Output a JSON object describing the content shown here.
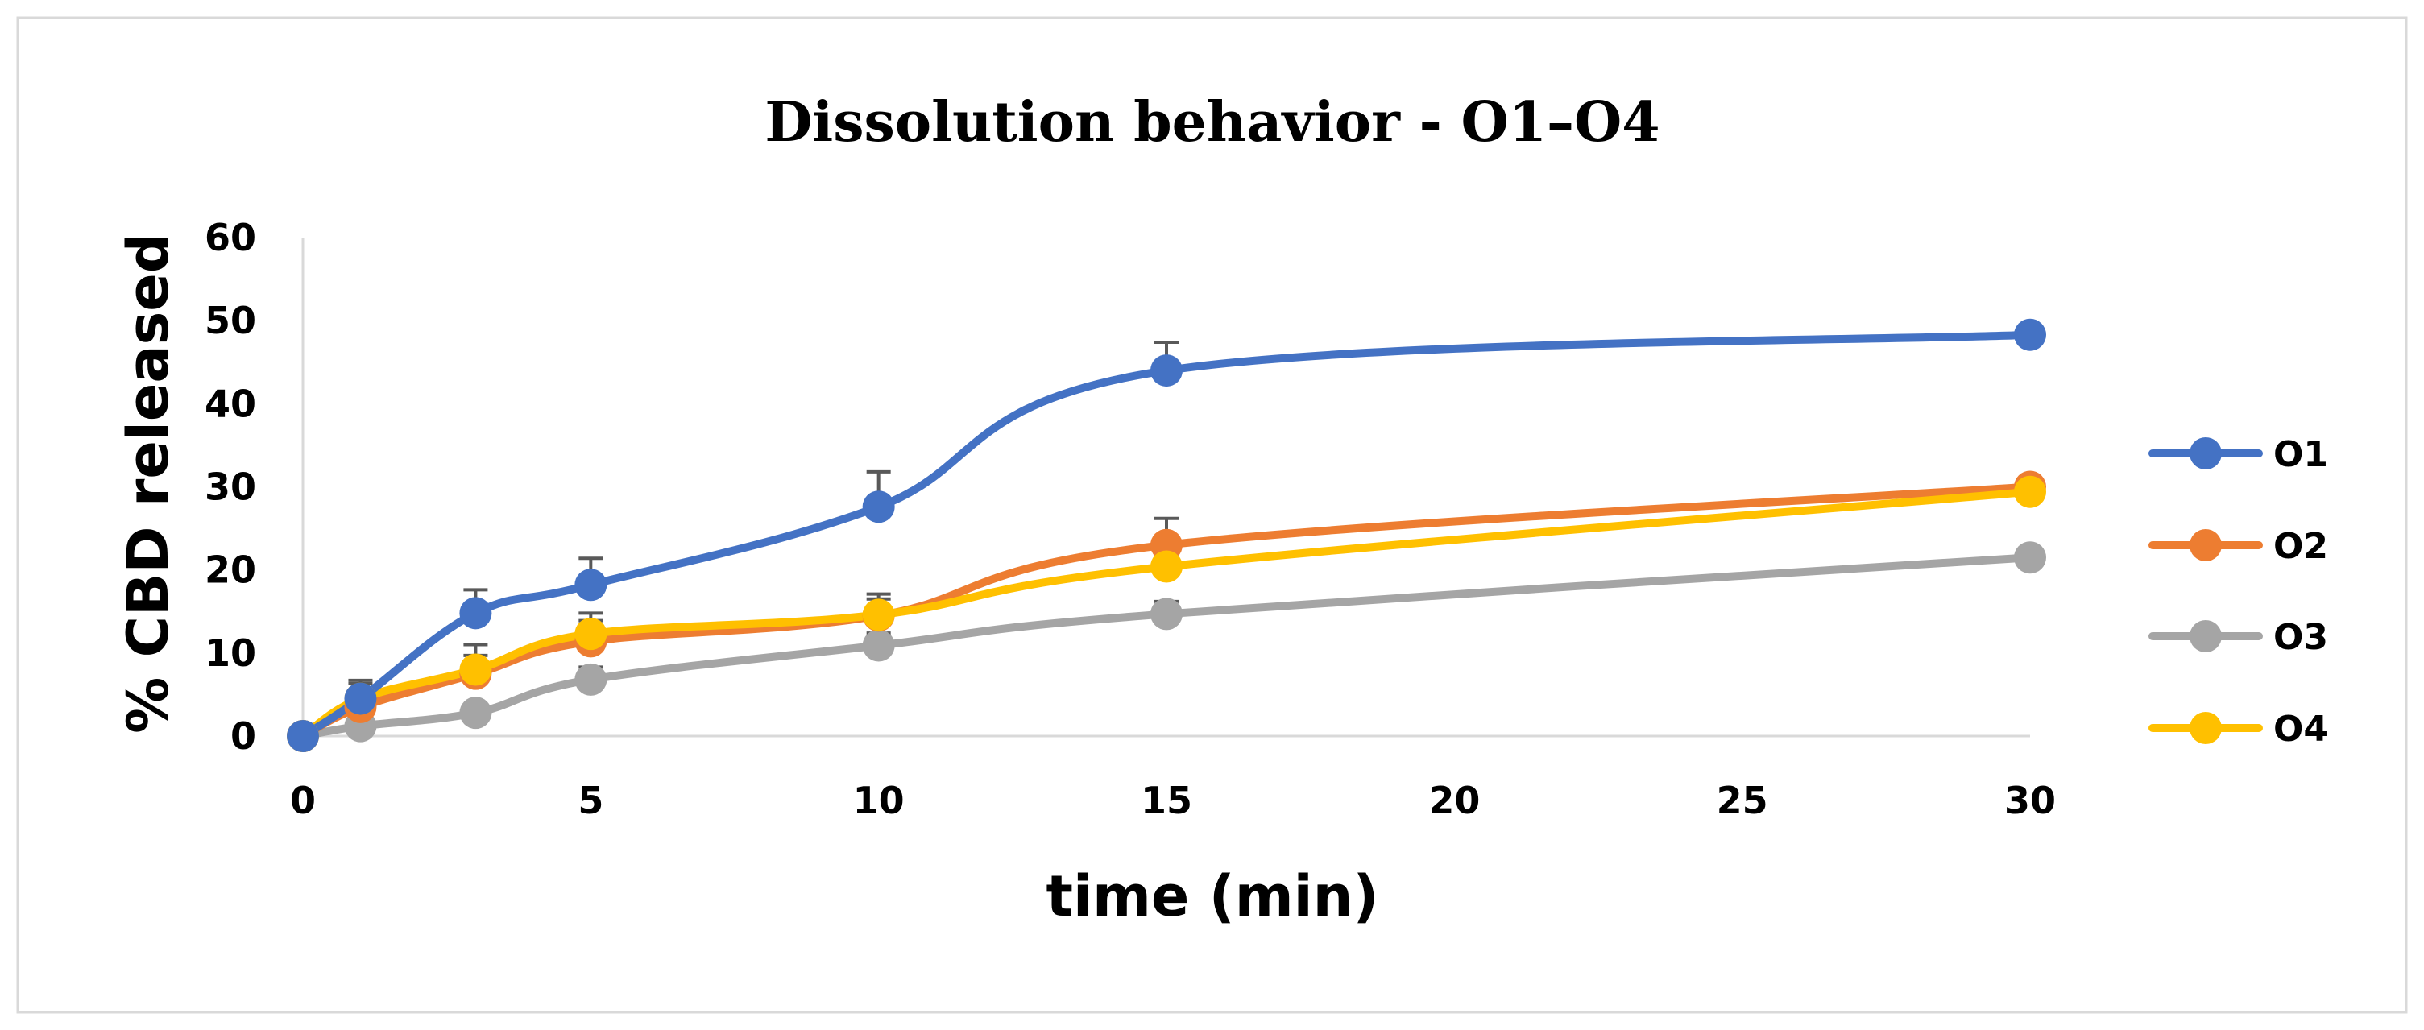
{
  "chart_data": {
    "type": "line",
    "title": "Dissolution behavior - O1–O4",
    "xlabel": "time (min)",
    "ylabel": "% CBD released",
    "xlim": [
      0,
      30
    ],
    "ylim": [
      0,
      60
    ],
    "x_ticks": [
      "0",
      "5",
      "10",
      "15",
      "20",
      "25",
      "30"
    ],
    "y_ticks": [
      "0",
      "10",
      "20",
      "30",
      "40",
      "50",
      "60"
    ],
    "grid": false,
    "legend_position": "right",
    "x": [
      0,
      1,
      3,
      5,
      10,
      15,
      30
    ],
    "series": [
      {
        "name": "O1",
        "color": "#4472C4",
        "values": [
          0,
          4.5,
          14.8,
          18.2,
          27.6,
          44.0,
          48.3
        ],
        "errors": [
          0,
          2.2,
          2.8,
          3.2,
          4.2,
          3.4,
          0
        ]
      },
      {
        "name": "O2",
        "color": "#ED7D31",
        "values": [
          0,
          3.5,
          7.5,
          11.4,
          14.5,
          23.0,
          30.0
        ],
        "errors": [
          0,
          1.5,
          2.2,
          2.5,
          2.0,
          3.2,
          0
        ]
      },
      {
        "name": "O3",
        "color": "#A5A5A5",
        "values": [
          0,
          1.2,
          2.8,
          6.8,
          10.9,
          14.7,
          21.5
        ],
        "errors": [
          0,
          0.8,
          1.0,
          1.5,
          1.5,
          1.5,
          0
        ]
      },
      {
        "name": "O4",
        "color": "#FFC000",
        "values": [
          0,
          4.5,
          8.0,
          12.3,
          14.6,
          20.4,
          29.4
        ],
        "errors": [
          0,
          1.8,
          3.0,
          2.5,
          2.5,
          2.8,
          0
        ]
      }
    ]
  }
}
